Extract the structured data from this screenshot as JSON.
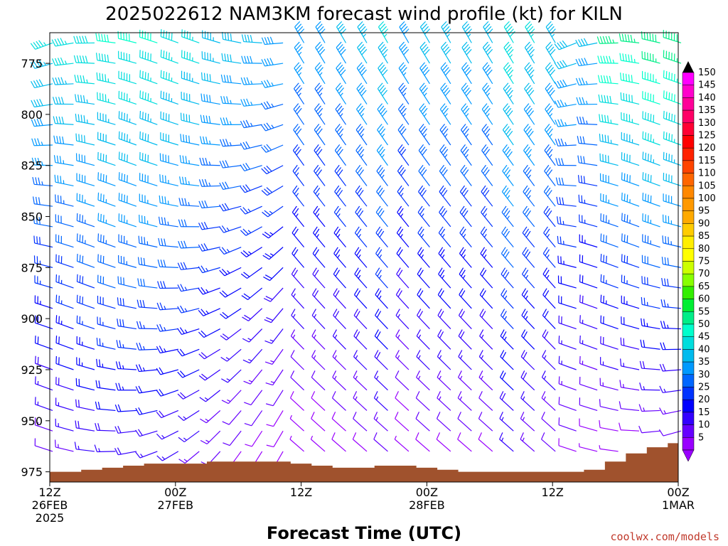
{
  "chart_data": {
    "type": "wind-barb-time-height",
    "title": "2025022612 NAM3KM forecast wind profile (kt) for KILN",
    "xlabel": "Forecast Time (UTC)",
    "ylabel": "",
    "ylim": [
      980,
      760
    ],
    "y_ticks": [
      775,
      800,
      825,
      850,
      875,
      900,
      925,
      950,
      975
    ],
    "x_ticks": [
      {
        "hour": 0,
        "line1": "12Z",
        "line2": "26FEB",
        "line3": "2025"
      },
      {
        "hour": 12,
        "line1": "00Z",
        "line2": "27FEB",
        "line3": ""
      },
      {
        "hour": 24,
        "line1": "12Z",
        "line2": "",
        "line3": ""
      },
      {
        "hour": 36,
        "line1": "00Z",
        "line2": "28FEB",
        "line3": ""
      },
      {
        "hour": 48,
        "line1": "12Z",
        "line2": "",
        "line3": ""
      },
      {
        "hour": 60,
        "line1": "00Z",
        "line2": "1MAR",
        "line3": ""
      }
    ],
    "x_range_hours": [
      0,
      60
    ],
    "levels_hpa": [
      765,
      775,
      785,
      795,
      805,
      815,
      825,
      835,
      845,
      855,
      865,
      875,
      885,
      895,
      905,
      915,
      925,
      935,
      945,
      955,
      965,
      975
    ],
    "hours": [
      0,
      2,
      4,
      6,
      8,
      10,
      12,
      14,
      16,
      18,
      20,
      22,
      24,
      26,
      28,
      30,
      32,
      34,
      36,
      38,
      40,
      42,
      44,
      46,
      48,
      50,
      52,
      54,
      56,
      58,
      60
    ],
    "surface_pressure_hpa": [
      975,
      975,
      974,
      973,
      972,
      971,
      971,
      971,
      970,
      970,
      970,
      970,
      971,
      972,
      973,
      973,
      972,
      972,
      973,
      974,
      975,
      975,
      975,
      975,
      975,
      975,
      974,
      970,
      966,
      963,
      961
    ],
    "wind_speed_kt_profile": "estimated speeds 5-65 kt; stronger aloft (green near top right), weak (violet) near surface",
    "colorbar": {
      "labels": [
        "150",
        "145",
        "140",
        "135",
        "130",
        "125",
        "120",
        "115",
        "110",
        "105",
        "100",
        "95",
        "90",
        "85",
        "80",
        "75",
        "70",
        "65",
        "60",
        "55",
        "50",
        "45",
        "40",
        "35",
        "30",
        "25",
        "20",
        "15",
        "10",
        "5"
      ],
      "colors": [
        "#ff00ff",
        "#ff00cc",
        "#ff0099",
        "#ff0066",
        "#ff0033",
        "#ff0000",
        "#ff2200",
        "#ff4400",
        "#ff6600",
        "#ff8800",
        "#ff9900",
        "#ffaa00",
        "#ffcc00",
        "#ffee00",
        "#ffff00",
        "#ccff00",
        "#88ff00",
        "#33ee00",
        "#00ee33",
        "#00ee88",
        "#00ffcc",
        "#00dddd",
        "#00bbee",
        "#0099ff",
        "#0066ff",
        "#0033ff",
        "#0000ff",
        "#3300ff",
        "#6600ff",
        "#9900ff"
      ],
      "top_arrow_color": "#000000",
      "bottom_arrow_color": "#9900ff"
    },
    "terrain_color": "#a0522d",
    "credit": "coolwx.com/models"
  }
}
